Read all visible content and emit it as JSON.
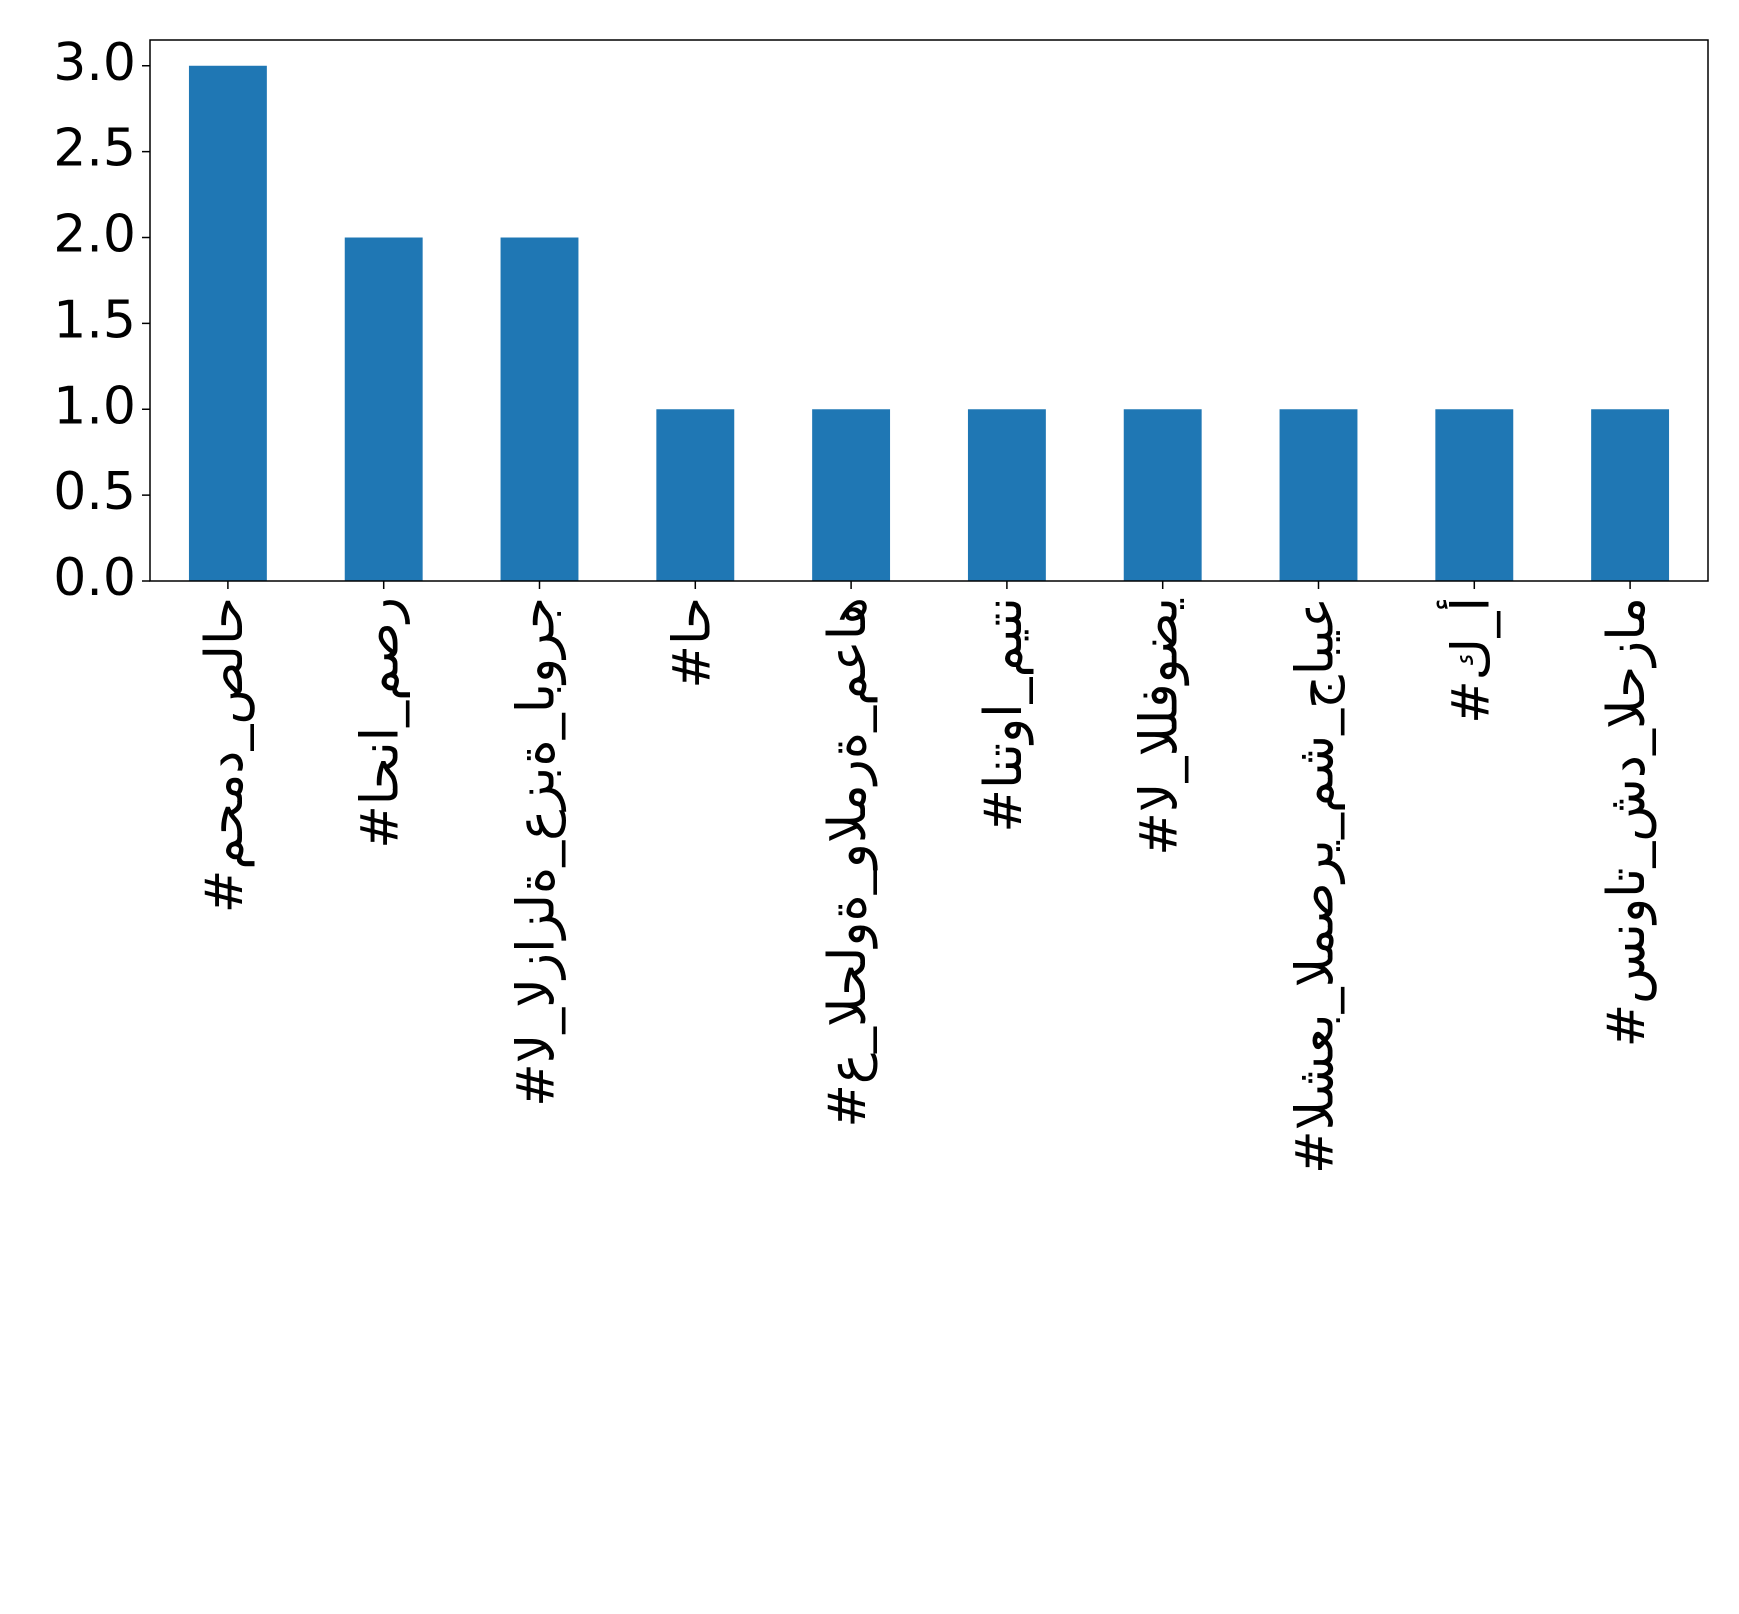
{
  "chart_data": {
    "type": "bar",
    "categories": [
      "#محمد_صلاح",
      "#احنا_مصر",
      "#ال_الزازلة_عزبة_ابورج",
      "#اح",
      "#ع_الحلوة_والمرة_معاه",
      "#انتوا_ميتن",
      "#ال_اللفوضي",
      "#الشعب_المصري_مش_جابيع",
      "#ك_أ",
      "#سنوات_شد_الحزام"
    ],
    "values": [
      3,
      2,
      2,
      1,
      1,
      1,
      1,
      1,
      1,
      1
    ],
    "color": "#1f77b4",
    "ylim": [
      0,
      3.15
    ],
    "yticks": [
      {
        "value": 0,
        "label": "0.0"
      },
      0.5,
      {
        "value": 1,
        "label": "1.0"
      },
      1.5,
      {
        "value": 2,
        "label": "2.0"
      },
      2.5,
      {
        "value": 3,
        "label": "3.0"
      }
    ],
    "grid": false
  }
}
